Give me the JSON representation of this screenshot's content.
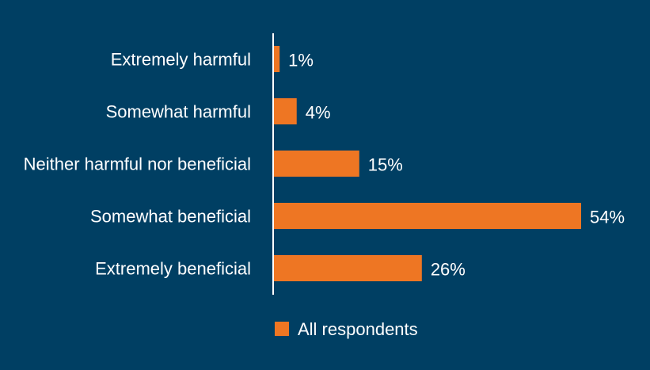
{
  "chart_data": {
    "type": "bar",
    "orientation": "horizontal",
    "categories": [
      "Extremely harmful",
      "Somewhat harmful",
      "Neither harmful nor beneficial",
      "Somewhat beneficial",
      "Extremely beneficial"
    ],
    "series": [
      {
        "name": "All respondents",
        "values": [
          1,
          4,
          15,
          54,
          26
        ],
        "value_labels": [
          "1%",
          "4%",
          "15%",
          "54%",
          "26%"
        ],
        "color": "#ee7623"
      }
    ],
    "xlim": [
      0,
      54
    ],
    "grid": false,
    "legend_position": "bottom-center"
  },
  "colors": {
    "background": "#003f63",
    "axis": "#ffffff",
    "text": "#ffffff"
  }
}
